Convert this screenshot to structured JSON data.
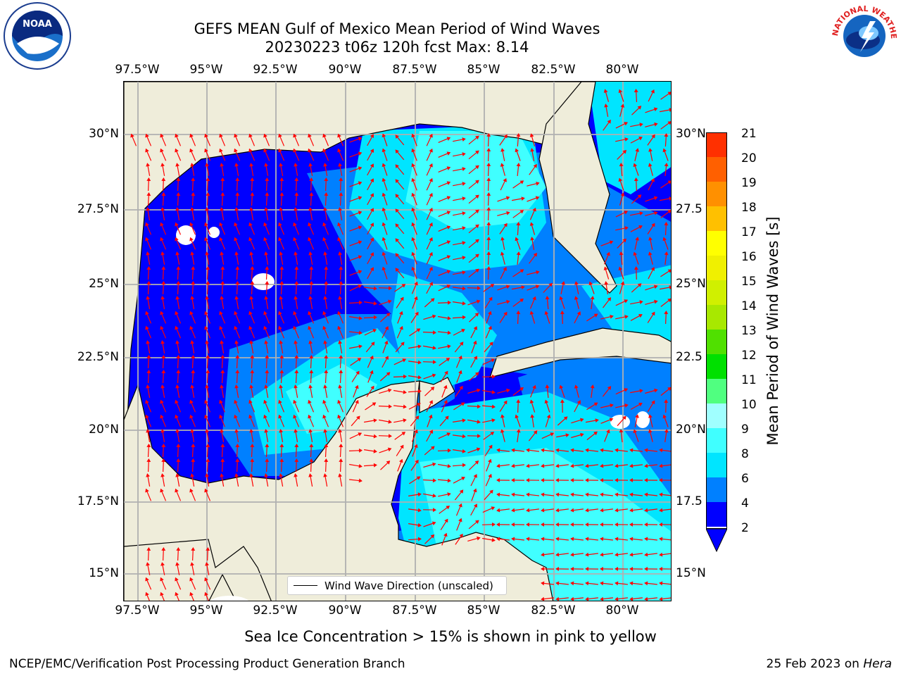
{
  "title_line1": "GEFS MEAN Gulf of Mexico Mean Period of Wind Waves",
  "title_line2": "20230223 t06z 120h fcst   Max: 8.14",
  "lon_ticks": [
    "97.5°W",
    "95°W",
    "92.5°W",
    "90°W",
    "87.5°W",
    "85°W",
    "82.5°W",
    "80°W"
  ],
  "lat_ticks_left": [
    "30°N",
    "27.5°N",
    "25°N",
    "22.5°N",
    "20°N",
    "17.5°N",
    "15°N"
  ],
  "lat_ticks_right": [
    "30°N",
    "27.5",
    "25°N",
    "22.5",
    "20°N",
    "17.5",
    "15°N"
  ],
  "legend_label": "Wind Wave Direction (unscaled)",
  "colorbar": {
    "label": "Mean Period of Wind Waves [s]",
    "ticks": [
      "2",
      "4",
      "6",
      "8",
      "9",
      "10",
      "11",
      "12",
      "13",
      "14",
      "15",
      "16",
      "17",
      "18",
      "19",
      "20",
      "21"
    ],
    "colors": [
      "#0000ff",
      "#0080ff",
      "#00e5ff",
      "#40ffff",
      "#a0ffff",
      "#50ff80",
      "#00e000",
      "#50e000",
      "#a8e800",
      "#d0f000",
      "#f0f000",
      "#ffff00",
      "#ffc000",
      "#ff9000",
      "#ff6000",
      "#ff3000",
      "#ff0000"
    ]
  },
  "footer_center": "Sea Ice Concentration > 15% is shown in pink to yellow",
  "footer_left": "NCEP/EMC/Verification Post Processing Product Generation Branch",
  "footer_right_date": "25 Feb 2023 on ",
  "footer_right_host": "Hera",
  "logo_noaa": "NOAA",
  "logo_nws": "NATIONAL WEATHER SERVICE",
  "colors": {
    "land": "#efedda",
    "arrow": "#ff0000",
    "grid": "#b0b0b0"
  }
}
